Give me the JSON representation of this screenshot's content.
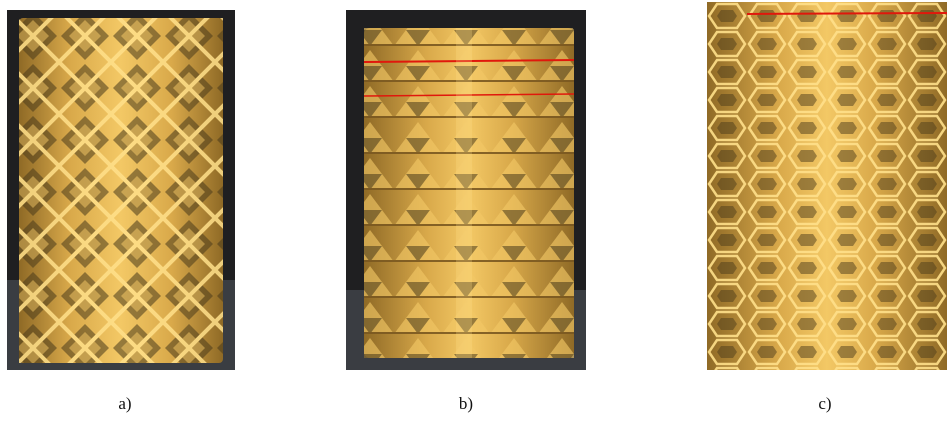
{
  "figure": {
    "panels": [
      {
        "id": "a",
        "caption": "a)"
      },
      {
        "id": "b",
        "caption": "b)"
      },
      {
        "id": "c",
        "caption": "c)"
      }
    ]
  },
  "colors": {
    "background": "#1f1f21",
    "floor": "#3a3d42",
    "gold_light": "#f3c865",
    "gold_mid": "#d9a94a",
    "gold_dark": "#8f6a26",
    "shadow": "#4a3a1a",
    "highlight_red": "#e0180c"
  }
}
